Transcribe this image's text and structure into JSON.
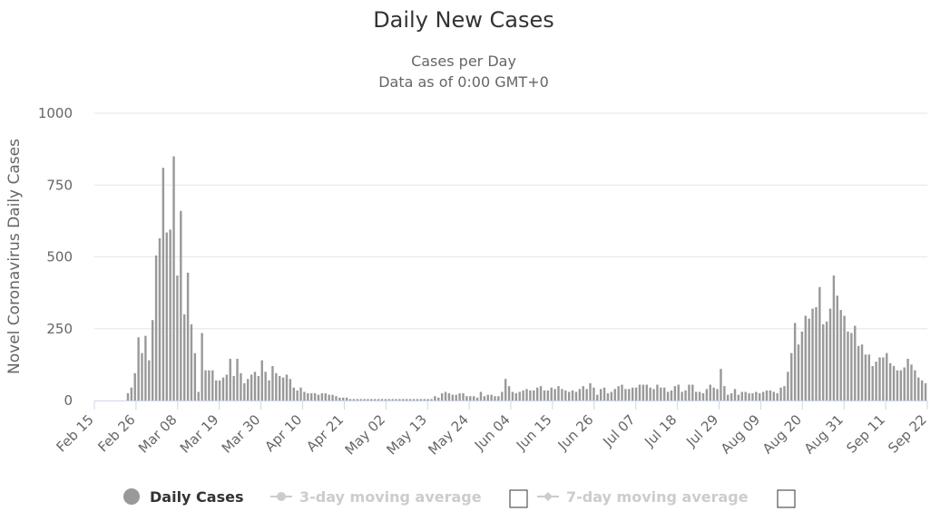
{
  "chart_data": {
    "type": "bar",
    "title": "Daily New Cases",
    "subtitle_lines": [
      "Cases per Day",
      "Data as of 0:00 GMT+0"
    ],
    "ylabel": "Novel Coronavirus Daily Cases",
    "xlabel": "",
    "ylim": [
      0,
      1000
    ],
    "yticks": [
      0,
      250,
      500,
      750,
      1000
    ],
    "x_tick_labels": [
      "Feb 15",
      "Feb 26",
      "Mar 08",
      "Mar 19",
      "Mar 30",
      "Apr 10",
      "Apr 21",
      "May 02",
      "May 13",
      "May 24",
      "Jun 04",
      "Jun 15",
      "Jun 26",
      "Jul 07",
      "Jul 18",
      "Jul 29",
      "Aug 09",
      "Aug 20",
      "Aug 31",
      "Sep 11",
      "Sep 22"
    ],
    "start_date": "Feb 15",
    "end_date": "Sep 22",
    "grid": true,
    "bar_color": "#999999",
    "series": [
      {
        "name": "Daily Cases",
        "values": [
          0,
          0,
          0,
          0,
          0,
          0,
          0,
          0,
          0,
          25,
          45,
          95,
          220,
          165,
          225,
          140,
          280,
          505,
          565,
          810,
          585,
          595,
          850,
          435,
          660,
          300,
          445,
          265,
          165,
          30,
          235,
          105,
          105,
          105,
          70,
          70,
          80,
          90,
          145,
          85,
          145,
          95,
          60,
          75,
          90,
          100,
          85,
          140,
          100,
          70,
          120,
          95,
          85,
          80,
          90,
          75,
          45,
          35,
          45,
          30,
          25,
          25,
          25,
          20,
          25,
          25,
          20,
          20,
          15,
          10,
          10,
          10,
          5,
          5,
          5,
          5,
          5,
          5,
          5,
          5,
          5,
          5,
          5,
          5,
          5,
          5,
          5,
          5,
          5,
          5,
          5,
          5,
          5,
          5,
          5,
          5,
          15,
          10,
          25,
          30,
          25,
          20,
          20,
          25,
          25,
          15,
          15,
          15,
          10,
          30,
          15,
          20,
          20,
          15,
          15,
          30,
          75,
          50,
          30,
          25,
          30,
          35,
          40,
          35,
          35,
          45,
          50,
          35,
          35,
          45,
          40,
          50,
          40,
          35,
          30,
          35,
          30,
          40,
          50,
          40,
          60,
          45,
          20,
          40,
          45,
          25,
          30,
          40,
          50,
          55,
          40,
          40,
          45,
          45,
          55,
          55,
          55,
          45,
          40,
          55,
          45,
          45,
          30,
          35,
          50,
          55,
          30,
          35,
          55,
          55,
          30,
          30,
          25,
          40,
          55,
          45,
          40,
          110,
          50,
          20,
          25,
          40,
          20,
          30,
          30,
          25,
          25,
          30,
          25,
          30,
          35,
          35,
          30,
          25,
          45,
          50,
          100,
          165,
          270,
          195,
          240,
          295,
          285,
          320,
          325,
          395,
          265,
          275,
          320,
          435,
          365,
          315,
          295,
          240,
          235,
          260,
          190,
          195,
          160,
          160,
          120,
          135,
          150,
          150,
          165,
          130,
          120,
          105,
          105,
          115,
          145,
          125,
          105,
          80,
          70,
          60
        ]
      },
      {
        "name": "3-day moving average",
        "values": []
      },
      {
        "name": "7-day moving average",
        "values": []
      }
    ],
    "legend": {
      "position": "bottom-center",
      "items": [
        {
          "label": "Daily Cases",
          "enabled": true
        },
        {
          "label": "3-day moving average",
          "enabled": false
        },
        {
          "label": "7-day moving average",
          "enabled": false
        }
      ]
    }
  }
}
